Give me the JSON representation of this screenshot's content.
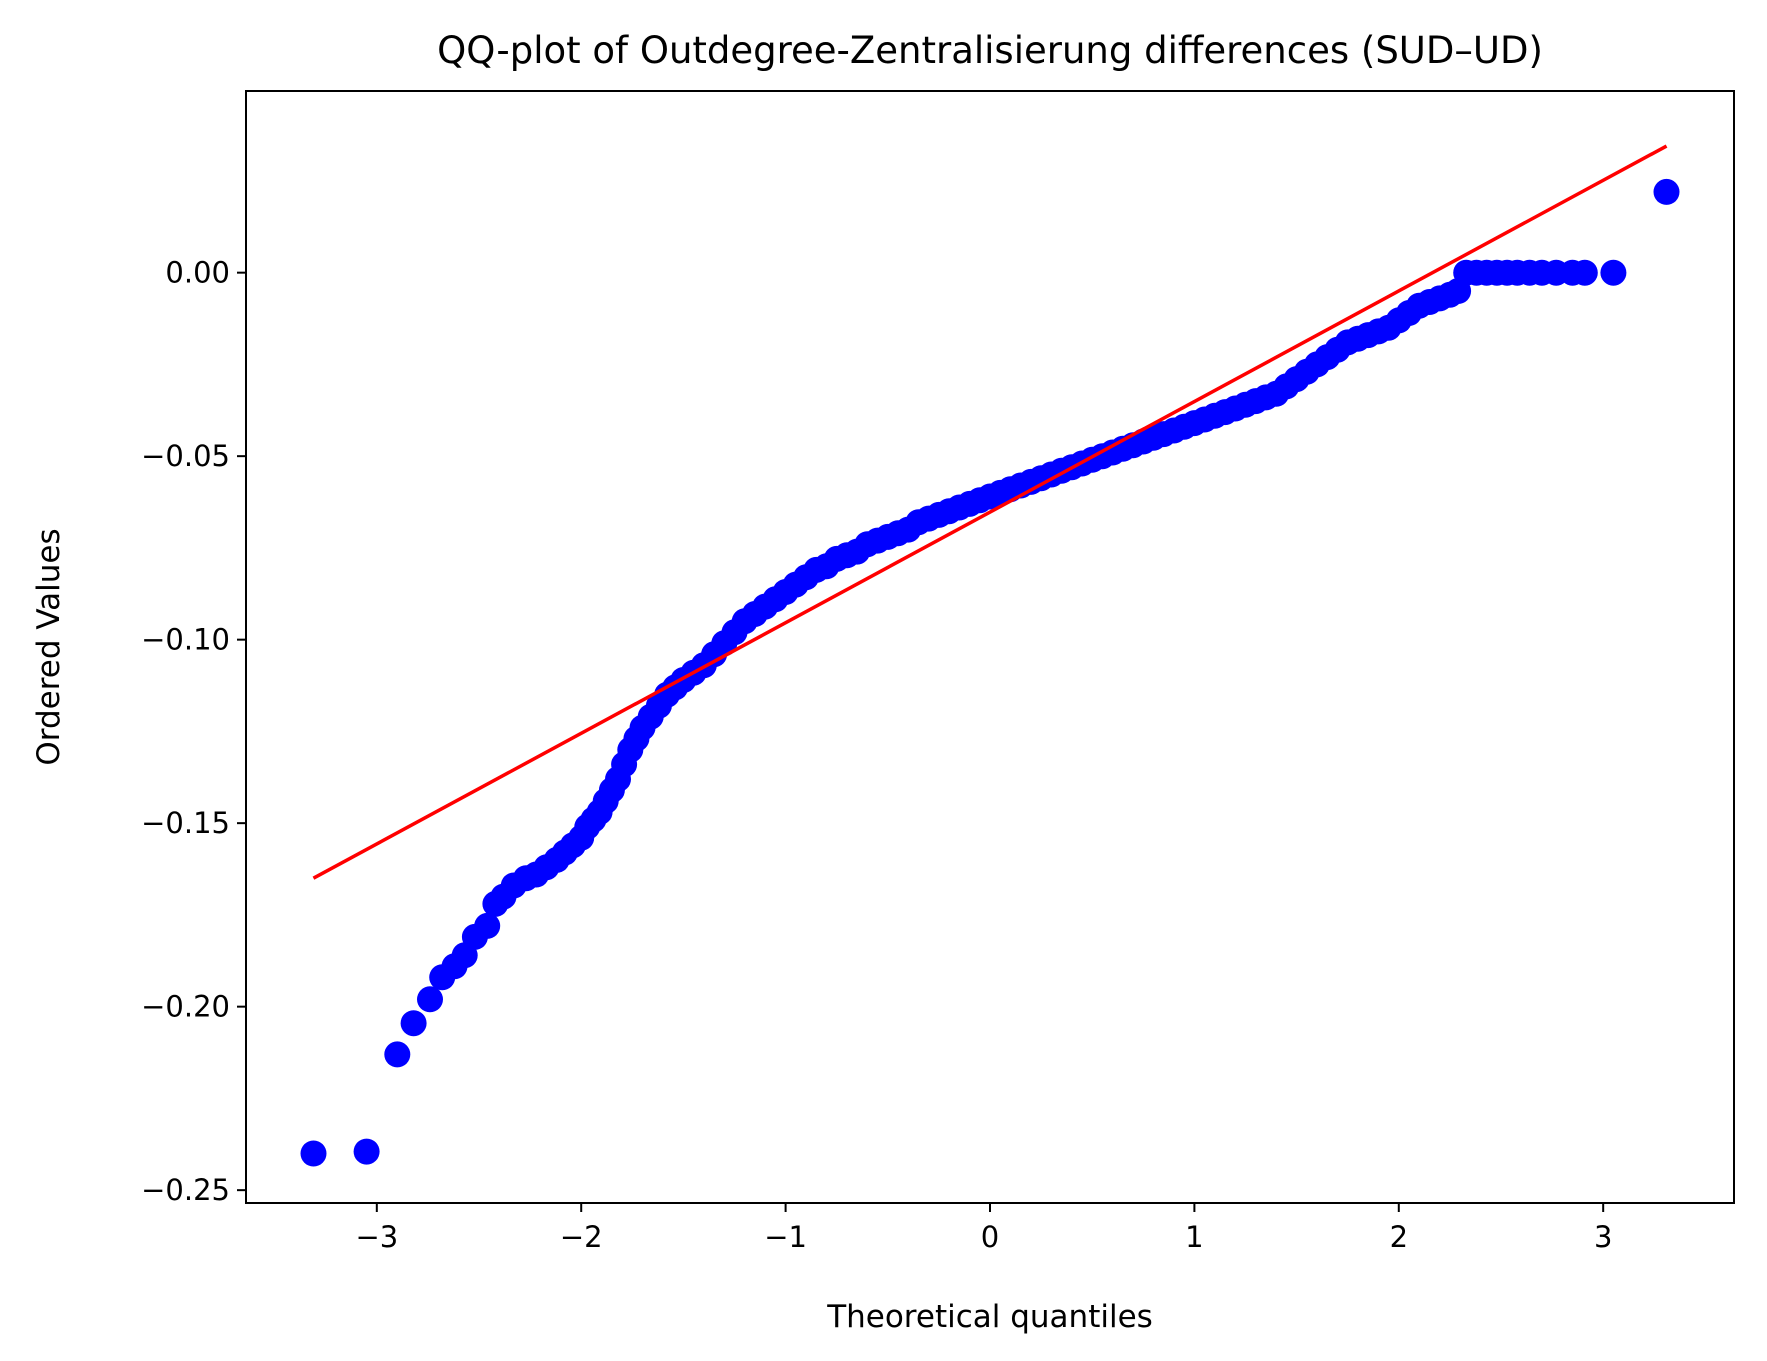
{
  "chart_data": {
    "type": "scatter",
    "title": "QQ-plot of Outdegree-Zentralisierung differences (SUD–UD)",
    "xlabel": "Theoretical quantiles",
    "ylabel": "Ordered Values",
    "xlim": [
      -3.64,
      3.64
    ],
    "ylim": [
      -0.2535,
      0.0495
    ],
    "xticks": [
      -3,
      -2,
      -1,
      0,
      1,
      2,
      3
    ],
    "xtick_labels": [
      "−3",
      "−2",
      "−1",
      "0",
      "1",
      "2",
      "3"
    ],
    "yticks": [
      -0.25,
      -0.2,
      -0.15,
      -0.1,
      -0.05,
      0.0
    ],
    "ytick_labels": [
      "−0.25",
      "−0.20",
      "−0.15",
      "−0.10",
      "−0.05",
      "0.00"
    ],
    "grid": false,
    "legend": "none",
    "colors": {
      "points": "#0000ff",
      "fit_line": "#ff0000"
    },
    "fit_line": {
      "x": [
        -3.31,
        3.31
      ],
      "y": [
        -0.165,
        0.0345
      ]
    },
    "points": [
      [
        -3.31,
        -0.24
      ],
      [
        -3.05,
        -0.2395
      ],
      [
        -2.9,
        -0.213
      ],
      [
        -2.82,
        -0.2045
      ],
      [
        -2.74,
        -0.198
      ],
      [
        -2.68,
        -0.192
      ],
      [
        -2.62,
        -0.189
      ],
      [
        -2.57,
        -0.186
      ],
      [
        -2.52,
        -0.181
      ],
      [
        -2.46,
        -0.178
      ],
      [
        -2.42,
        -0.172
      ],
      [
        -2.38,
        -0.17
      ],
      [
        -2.33,
        -0.167
      ],
      [
        -2.27,
        -0.165
      ],
      [
        -2.22,
        -0.164
      ],
      [
        -2.17,
        -0.162
      ],
      [
        -2.12,
        -0.16
      ],
      [
        -2.08,
        -0.158
      ],
      [
        -2.04,
        -0.156
      ],
      [
        -2.0,
        -0.154
      ],
      [
        -1.97,
        -0.151
      ],
      [
        -1.94,
        -0.149
      ],
      [
        -1.91,
        -0.147
      ],
      [
        -1.88,
        -0.144
      ],
      [
        -1.85,
        -0.141
      ],
      [
        -1.82,
        -0.138
      ],
      [
        -1.79,
        -0.134
      ],
      [
        -1.76,
        -0.13
      ],
      [
        -1.73,
        -0.127
      ],
      [
        -1.7,
        -0.124
      ],
      [
        -1.66,
        -0.121
      ],
      [
        -1.62,
        -0.118
      ],
      [
        -1.58,
        -0.115
      ],
      [
        -1.54,
        -0.113
      ],
      [
        -1.5,
        -0.111
      ],
      [
        -1.45,
        -0.109
      ],
      [
        -1.4,
        -0.107
      ],
      [
        -1.35,
        -0.104
      ],
      [
        -1.3,
        -0.101
      ],
      [
        -1.25,
        -0.098
      ],
      [
        -1.2,
        -0.095
      ],
      [
        -1.15,
        -0.093
      ],
      [
        -1.1,
        -0.091
      ],
      [
        -1.05,
        -0.089
      ],
      [
        -1.0,
        -0.087
      ],
      [
        -0.95,
        -0.085
      ],
      [
        -0.9,
        -0.083
      ],
      [
        -0.85,
        -0.081
      ],
      [
        -0.8,
        -0.08
      ],
      [
        -0.75,
        -0.078
      ],
      [
        -0.7,
        -0.077
      ],
      [
        -0.65,
        -0.076
      ],
      [
        -0.6,
        -0.074
      ],
      [
        -0.55,
        -0.073
      ],
      [
        -0.5,
        -0.072
      ],
      [
        -0.45,
        -0.071
      ],
      [
        -0.4,
        -0.07
      ],
      [
        -0.35,
        -0.068
      ],
      [
        -0.3,
        -0.067
      ],
      [
        -0.25,
        -0.066
      ],
      [
        -0.2,
        -0.065
      ],
      [
        -0.15,
        -0.064
      ],
      [
        -0.1,
        -0.063
      ],
      [
        -0.05,
        -0.062
      ],
      [
        0.0,
        -0.061
      ],
      [
        0.05,
        -0.06
      ],
      [
        0.1,
        -0.059
      ],
      [
        0.15,
        -0.058
      ],
      [
        0.2,
        -0.057
      ],
      [
        0.25,
        -0.056
      ],
      [
        0.3,
        -0.055
      ],
      [
        0.35,
        -0.054
      ],
      [
        0.4,
        -0.053
      ],
      [
        0.45,
        -0.052
      ],
      [
        0.5,
        -0.051
      ],
      [
        0.55,
        -0.05
      ],
      [
        0.6,
        -0.049
      ],
      [
        0.65,
        -0.048
      ],
      [
        0.7,
        -0.047
      ],
      [
        0.75,
        -0.046
      ],
      [
        0.8,
        -0.045
      ],
      [
        0.85,
        -0.044
      ],
      [
        0.9,
        -0.043
      ],
      [
        0.95,
        -0.042
      ],
      [
        1.0,
        -0.041
      ],
      [
        1.05,
        -0.04
      ],
      [
        1.1,
        -0.039
      ],
      [
        1.15,
        -0.038
      ],
      [
        1.2,
        -0.037
      ],
      [
        1.25,
        -0.036
      ],
      [
        1.3,
        -0.035
      ],
      [
        1.35,
        -0.034
      ],
      [
        1.4,
        -0.033
      ],
      [
        1.45,
        -0.031
      ],
      [
        1.5,
        -0.029
      ],
      [
        1.55,
        -0.027
      ],
      [
        1.6,
        -0.025
      ],
      [
        1.65,
        -0.023
      ],
      [
        1.7,
        -0.021
      ],
      [
        1.75,
        -0.019
      ],
      [
        1.8,
        -0.018
      ],
      [
        1.85,
        -0.017
      ],
      [
        1.9,
        -0.016
      ],
      [
        1.95,
        -0.015
      ],
      [
        2.0,
        -0.013
      ],
      [
        2.05,
        -0.011
      ],
      [
        2.1,
        -0.009
      ],
      [
        2.15,
        -0.008
      ],
      [
        2.2,
        -0.007
      ],
      [
        2.25,
        -0.006
      ],
      [
        2.29,
        -0.005
      ],
      [
        2.33,
        0.0
      ],
      [
        2.38,
        0.0
      ],
      [
        2.43,
        0.0
      ],
      [
        2.48,
        0.0
      ],
      [
        2.53,
        0.0
      ],
      [
        2.58,
        0.0
      ],
      [
        2.64,
        0.0
      ],
      [
        2.7,
        0.0
      ],
      [
        2.77,
        0.0
      ],
      [
        2.85,
        0.0
      ],
      [
        2.91,
        0.0
      ],
      [
        3.05,
        0.0
      ],
      [
        3.31,
        0.022
      ]
    ]
  }
}
